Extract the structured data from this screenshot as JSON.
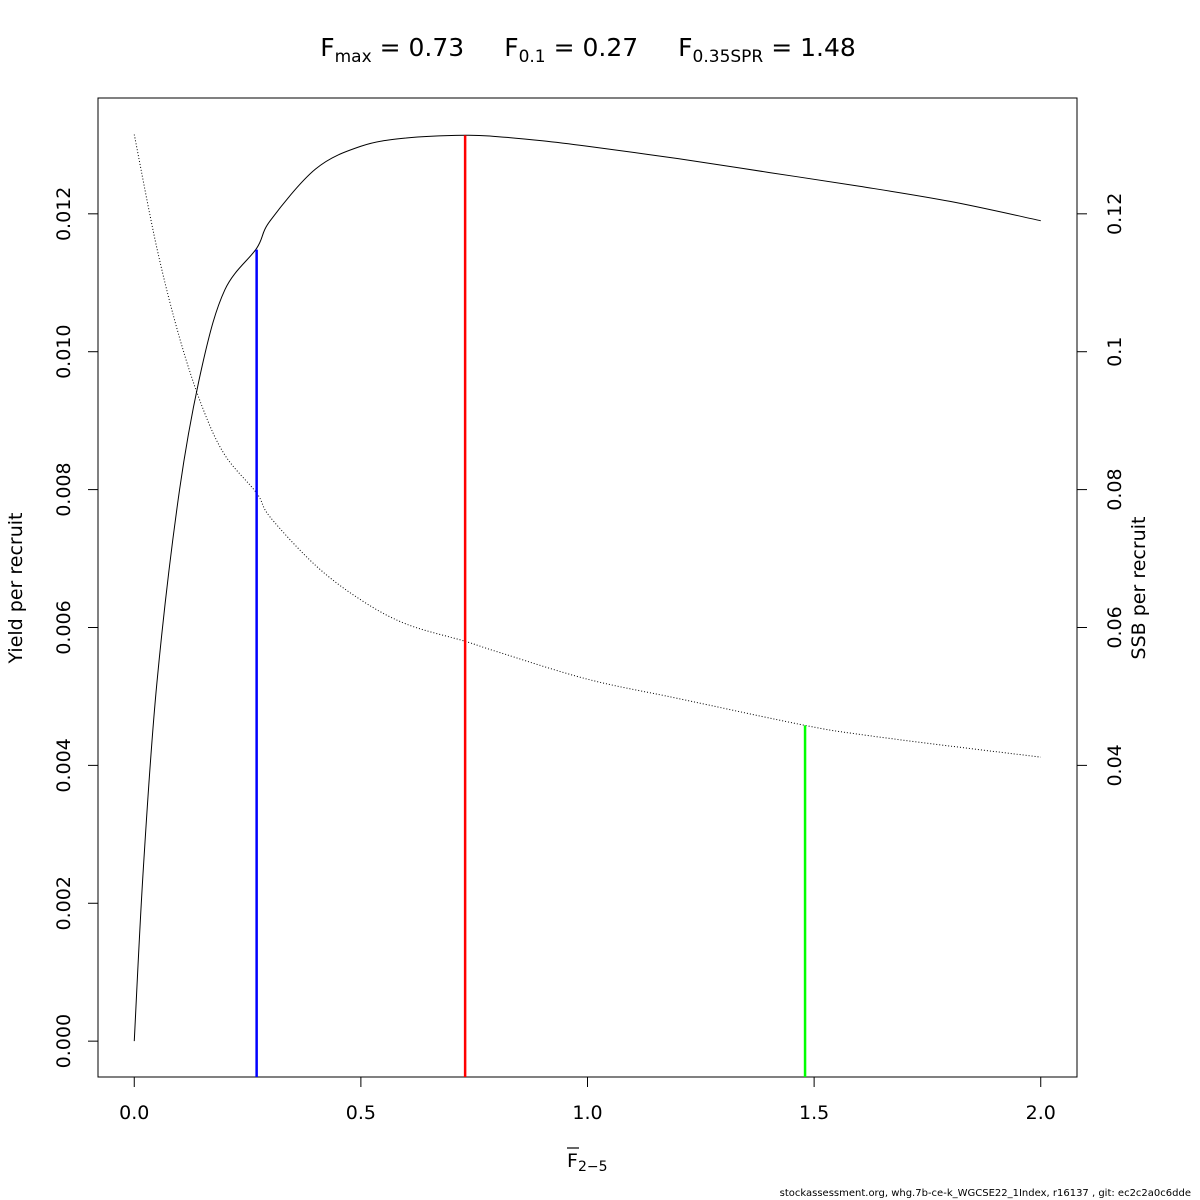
{
  "chart_data": {
    "type": "line",
    "title": {
      "fmax": {
        "main": "F",
        "sub": "max",
        "value": " = 0.73"
      },
      "f01": {
        "main": "F",
        "sub": "0.1",
        "value": " = 0.27"
      },
      "f35": {
        "main": "F",
        "sub": "0.35SPR",
        "value": " = 1.48"
      }
    },
    "xlabel": {
      "main": "F",
      "sub": "2−5"
    },
    "ylabel_left": "Yield per recruit",
    "ylabel_right": "SSB per recruit",
    "xlim": [
      -0.08,
      2.08
    ],
    "ylim_left": [
      -0.00052,
      0.01368
    ],
    "ylim_right": [
      -0.0052,
      0.1368
    ],
    "x_ticks": [
      "0.0",
      "0.5",
      "1.0",
      "1.5",
      "2.0"
    ],
    "y_left_ticks": [
      "0.000",
      "0.002",
      "0.004",
      "0.006",
      "0.008",
      "0.010",
      "0.012"
    ],
    "y_right_ticks": [
      "0.04",
      "0.06",
      "0.08",
      "0.1",
      "0.12"
    ],
    "series": [
      {
        "axis": "left",
        "style": "solid",
        "color": "#000000",
        "x": [
          0,
          0.02,
          0.05,
          0.1,
          0.15,
          0.2,
          0.27,
          0.3,
          0.4,
          0.5,
          0.6,
          0.73,
          0.8,
          0.9,
          1.0,
          1.2,
          1.4,
          1.6,
          1.8,
          2.0
        ],
        "y": [
          0,
          0.0025,
          0.0052,
          0.008,
          0.0098,
          0.0109,
          0.0115,
          0.0119,
          0.01265,
          0.01298,
          0.0131,
          0.01314,
          0.01312,
          0.01306,
          0.01298,
          0.0128,
          0.0126,
          0.0124,
          0.01218,
          0.0119
        ]
      },
      {
        "axis": "right",
        "style": "dotted",
        "color": "#000000",
        "x": [
          0,
          0.05,
          0.1,
          0.15,
          0.2,
          0.27,
          0.3,
          0.4,
          0.5,
          0.6,
          0.73,
          0.8,
          1.0,
          1.2,
          1.48,
          1.6,
          1.8,
          2.0
        ],
        "y": [
          0.1315,
          0.115,
          0.102,
          0.092,
          0.085,
          0.0795,
          0.076,
          0.069,
          0.064,
          0.0605,
          0.058,
          0.0565,
          0.0525,
          0.0497,
          0.0458,
          0.0445,
          0.0428,
          0.0412
        ]
      }
    ],
    "ref_lines": [
      {
        "name": "F0.1",
        "x": 0.27,
        "y_top": 0.01148,
        "axis": "left",
        "color": "#0000ff"
      },
      {
        "name": "Fmax",
        "x": 0.73,
        "y_top": 0.01314,
        "axis": "left",
        "color": "#ff0000"
      },
      {
        "name": "F0.35SPR",
        "x": 1.48,
        "y_top": 0.0458,
        "axis": "right",
        "color": "#00ff00"
      }
    ],
    "grid": false,
    "legend": "none"
  },
  "footer": "stockassessment.org, whg.7b-ce-k_WGCSE22_1Index, r16137 , git: ec2c2a0c6dde"
}
